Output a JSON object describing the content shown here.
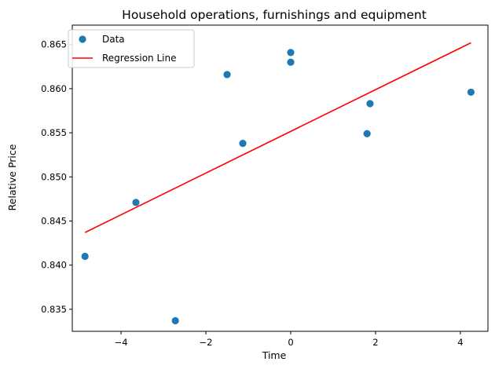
{
  "chart_data": {
    "type": "scatter",
    "title": "Household operations, furnishings and equipment",
    "xlabel": "Time",
    "ylabel": "Relative Price",
    "xlim": [
      -5.15,
      4.65
    ],
    "ylim": [
      0.8325,
      0.8672
    ],
    "x_ticks": [
      -4,
      -2,
      0,
      2,
      4
    ],
    "x_tick_labels": [
      "−4",
      "−2",
      "0",
      "2",
      "4"
    ],
    "y_ticks": [
      0.835,
      0.84,
      0.845,
      0.85,
      0.855,
      0.86,
      0.865
    ],
    "y_tick_labels": [
      "0.835",
      "0.840",
      "0.845",
      "0.850",
      "0.855",
      "0.860",
      "0.865"
    ],
    "grid": false,
    "legend_position": "upper-left",
    "series": [
      {
        "name": "Data",
        "kind": "scatter",
        "color": "#1f77b4",
        "points": [
          {
            "x": -4.85,
            "y": 0.841
          },
          {
            "x": -3.65,
            "y": 0.8471
          },
          {
            "x": -2.72,
            "y": 0.8337
          },
          {
            "x": -1.5,
            "y": 0.8616
          },
          {
            "x": -1.13,
            "y": 0.8538
          },
          {
            "x": 0.0,
            "y": 0.863
          },
          {
            "x": 0.0,
            "y": 0.8641
          },
          {
            "x": 1.8,
            "y": 0.8549
          },
          {
            "x": 1.87,
            "y": 0.8583
          },
          {
            "x": 4.25,
            "y": 0.8596
          }
        ]
      },
      {
        "name": "Regression Line",
        "kind": "line",
        "color": "#ff0000",
        "points": [
          {
            "x": -4.85,
            "y": 0.8437
          },
          {
            "x": 4.25,
            "y": 0.8652
          }
        ]
      }
    ]
  }
}
